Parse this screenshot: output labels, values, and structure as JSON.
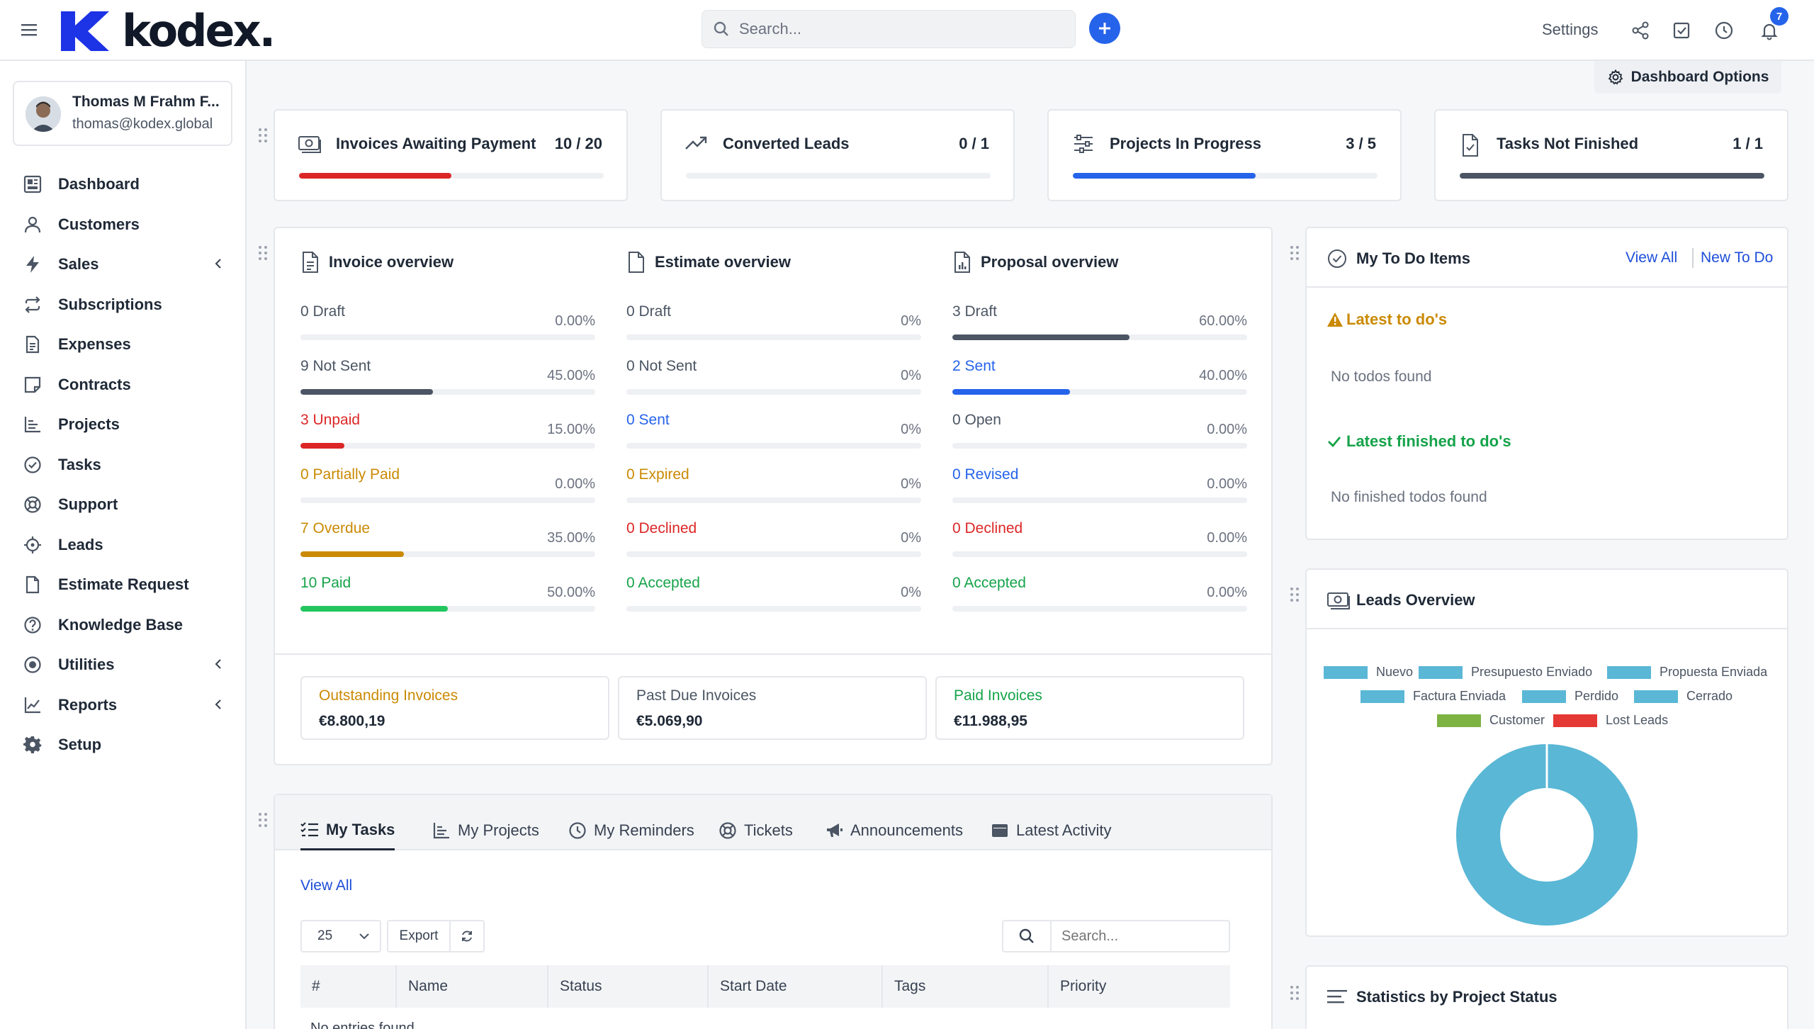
{
  "header": {
    "logo_text": "kodex.",
    "search_placeholder": "Search...",
    "settings_label": "Settings",
    "notification_count": "7",
    "accent_color": "#2563eb"
  },
  "user": {
    "name": "Thomas M Frahm F...",
    "email": "thomas@kodex.global"
  },
  "sidebar": {
    "items": [
      {
        "label": "Dashboard",
        "icon": "dashboard-icon"
      },
      {
        "label": "Customers",
        "icon": "user-icon"
      },
      {
        "label": "Sales",
        "icon": "bolt-icon",
        "has_submenu": true
      },
      {
        "label": "Subscriptions",
        "icon": "repeat-icon"
      },
      {
        "label": "Expenses",
        "icon": "file-text-icon"
      },
      {
        "label": "Contracts",
        "icon": "sticky-note-icon"
      },
      {
        "label": "Projects",
        "icon": "bar-chart-icon"
      },
      {
        "label": "Tasks",
        "icon": "check-circle-icon"
      },
      {
        "label": "Support",
        "icon": "life-ring-icon"
      },
      {
        "label": "Leads",
        "icon": "crosshair-icon"
      },
      {
        "label": "Estimate Request",
        "icon": "file-icon"
      },
      {
        "label": "Knowledge Base",
        "icon": "question-circle-icon"
      },
      {
        "label": "Utilities",
        "icon": "dot-circle-icon",
        "has_submenu": true
      },
      {
        "label": "Reports",
        "icon": "line-chart-icon",
        "has_submenu": true
      },
      {
        "label": "Setup",
        "icon": "gear-icon"
      }
    ]
  },
  "dashboard_options_label": "Dashboard Options",
  "stats": [
    {
      "title": "Invoices Awaiting Payment",
      "count": "10 / 20",
      "progress": 0.5,
      "color": "#dc2626",
      "icon": "money-bill-icon"
    },
    {
      "title": "Converted Leads",
      "count": "0 / 1",
      "progress": 0,
      "color": "#9ca3af",
      "icon": "trending-up-icon"
    },
    {
      "title": "Projects In Progress",
      "count": "3 / 5",
      "progress": 0.6,
      "color": "#2563eb",
      "icon": "sliders-icon"
    },
    {
      "title": "Tasks Not Finished",
      "count": "1 / 1",
      "progress": 1.0,
      "color": "#4b5563",
      "icon": "file-check-icon"
    }
  ],
  "overview": {
    "columns": [
      {
        "title": "Invoice overview",
        "rows": [
          {
            "label": "0 Draft",
            "pct": "0.00%",
            "value": 0,
            "color": "#4b5563",
            "bar": "#4b5563"
          },
          {
            "label": "9 Not Sent",
            "pct": "45.00%",
            "value": 0.45,
            "color": "#4b5563",
            "bar": "#4b5563"
          },
          {
            "label": "3 Unpaid",
            "pct": "15.00%",
            "value": 0.15,
            "color": "#dc2626",
            "bar": "#dc2626"
          },
          {
            "label": "0 Partially Paid",
            "pct": "0.00%",
            "value": 0,
            "color": "#ca8a04",
            "bar": "#ca8a04"
          },
          {
            "label": "7 Overdue",
            "pct": "35.00%",
            "value": 0.35,
            "color": "#ca8a04",
            "bar": "#ca8a04"
          },
          {
            "label": "10 Paid",
            "pct": "50.00%",
            "value": 0.5,
            "color": "#16a34a",
            "bar": "#22c55e"
          }
        ]
      },
      {
        "title": "Estimate overview",
        "rows": [
          {
            "label": "0 Draft",
            "pct": "0%",
            "value": 0,
            "color": "#4b5563",
            "bar": "#4b5563"
          },
          {
            "label": "0 Not Sent",
            "pct": "0%",
            "value": 0,
            "color": "#4b5563",
            "bar": "#4b5563"
          },
          {
            "label": "0 Sent",
            "pct": "0%",
            "value": 0,
            "color": "#2563eb",
            "bar": "#2563eb"
          },
          {
            "label": "0 Expired",
            "pct": "0%",
            "value": 0,
            "color": "#ca8a04",
            "bar": "#ca8a04"
          },
          {
            "label": "0 Declined",
            "pct": "0%",
            "value": 0,
            "color": "#dc2626",
            "bar": "#dc2626"
          },
          {
            "label": "0 Accepted",
            "pct": "0%",
            "value": 0,
            "color": "#16a34a",
            "bar": "#22c55e"
          }
        ]
      },
      {
        "title": "Proposal overview",
        "rows": [
          {
            "label": "3 Draft",
            "pct": "60.00%",
            "value": 0.6,
            "color": "#4b5563",
            "bar": "#4b5563"
          },
          {
            "label": "2 Sent",
            "pct": "40.00%",
            "value": 0.4,
            "color": "#2563eb",
            "bar": "#2563eb"
          },
          {
            "label": "0 Open",
            "pct": "0.00%",
            "value": 0,
            "color": "#4b5563",
            "bar": "#4b5563"
          },
          {
            "label": "0 Revised",
            "pct": "0.00%",
            "value": 0,
            "color": "#2563eb",
            "bar": "#2563eb"
          },
          {
            "label": "0 Declined",
            "pct": "0.00%",
            "value": 0,
            "color": "#dc2626",
            "bar": "#dc2626"
          },
          {
            "label": "0 Accepted",
            "pct": "0.00%",
            "value": 0,
            "color": "#16a34a",
            "bar": "#22c55e"
          }
        ]
      }
    ],
    "totals": [
      {
        "label": "Outstanding Invoices",
        "value": "€8.800,19",
        "color": "#ca8a04"
      },
      {
        "label": "Past Due Invoices",
        "value": "€5.069,90",
        "color": "#4b5563"
      },
      {
        "label": "Paid Invoices",
        "value": "€11.988,95",
        "color": "#16a34a"
      }
    ]
  },
  "todo": {
    "title": "My To Do Items",
    "view_all": "View All",
    "new_todo": "New To Do",
    "latest_title": "Latest to do's",
    "latest_empty": "No todos found",
    "finished_title": "Latest finished to do's",
    "finished_empty": "No finished todos found"
  },
  "leads": {
    "title": "Leads Overview"
  },
  "project_status": {
    "title": "Statistics by Project Status"
  },
  "chart_data": {
    "type": "pie",
    "title": "",
    "categories": [
      "Nuevo",
      "Presupuesto Enviado",
      "Propuesta Enviada",
      "Factura Enviada",
      "Perdido",
      "Cerrado",
      "Customer",
      "Lost Leads"
    ],
    "colors": [
      "#5ab7d6",
      "#5ab7d6",
      "#5ab7d6",
      "#5ab7d6",
      "#5ab7d6",
      "#5ab7d6",
      "#7cb342",
      "#e53935"
    ],
    "values": [
      1,
      0,
      0,
      0,
      0,
      0,
      0,
      0
    ],
    "legend_position": "top"
  },
  "tasks_panel": {
    "tabs": [
      {
        "label": "My Tasks",
        "icon": "task-list-icon",
        "active": true
      },
      {
        "label": "My Projects",
        "icon": "bar-chart-icon"
      },
      {
        "label": "My Reminders",
        "icon": "clock-icon"
      },
      {
        "label": "Tickets",
        "icon": "life-ring-icon"
      },
      {
        "label": "Announcements",
        "icon": "megaphone-icon"
      },
      {
        "label": "Latest Activity",
        "icon": "window-icon"
      }
    ],
    "view_all": "View All",
    "page_size": "25",
    "export_label": "Export",
    "search_placeholder": "Search...",
    "columns": [
      "#",
      "Name",
      "Status",
      "Start Date",
      "Tags",
      "Priority"
    ],
    "empty_text": "No entries found"
  }
}
